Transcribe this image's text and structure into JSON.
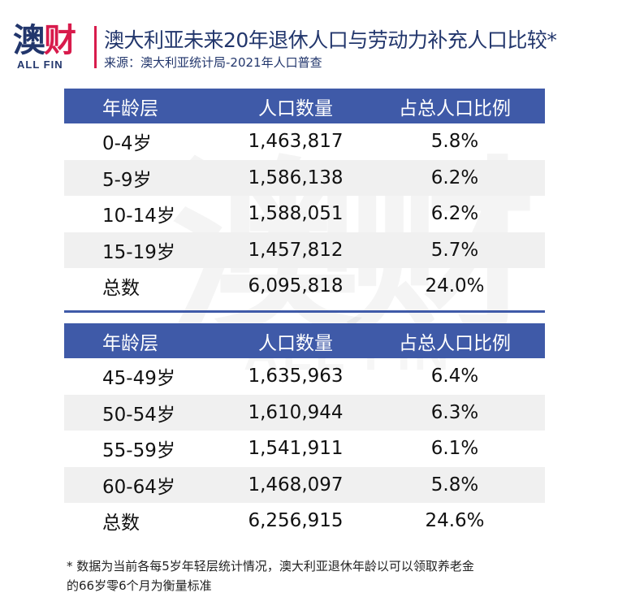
{
  "logo": {
    "main_a": "澳",
    "main_b": "财",
    "sub": "ALL FIN"
  },
  "watermark": {
    "main": "澳财",
    "sub": "ALL FIN"
  },
  "title": "澳大利亚未来20年退休人口与劳动力补充人口比较*",
  "source": "来源：澳大利亚统计局-2021年人口普查",
  "colors": {
    "brand_navy": "#22366c",
    "brand_red": "#d81b4c",
    "header_blue": "#3f5aa8",
    "row_shade": "#f0f0f0"
  },
  "tables": [
    {
      "headers": [
        "年龄层",
        "人口数量",
        "占总人口比例"
      ],
      "rows": [
        [
          "0-4岁",
          "1,463,817",
          "5.8%"
        ],
        [
          "5-9岁",
          "1,586,138",
          "6.2%"
        ],
        [
          "10-14岁",
          "1,588,051",
          "6.2%"
        ],
        [
          "15-19岁",
          "1,457,812",
          "5.7%"
        ],
        [
          "总数",
          "6,095,818",
          "24.0%"
        ]
      ]
    },
    {
      "headers": [
        "年龄层",
        "人口数量",
        "占总人口比例"
      ],
      "rows": [
        [
          "45-49岁",
          "1,635,963",
          "6.4%"
        ],
        [
          "50-54岁",
          "1,610,944",
          "6.3%"
        ],
        [
          "55-59岁",
          "1,541,911",
          "6.1%"
        ],
        [
          "60-64岁",
          "1,468,097",
          "5.8%"
        ],
        [
          "总数",
          "6,256,915",
          "24.6%"
        ]
      ]
    }
  ],
  "footnote": {
    "line1": "* 数据为当前各每5岁年轻层统计情况，澳大利亚退休年龄以可以领取养老金",
    "line2": "的66岁零6个月为衡量标准"
  }
}
